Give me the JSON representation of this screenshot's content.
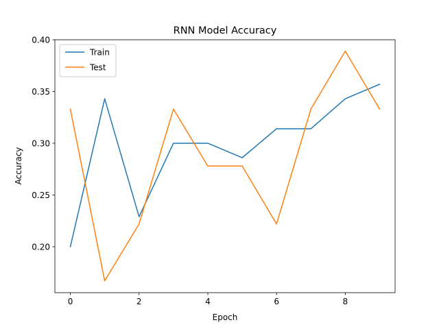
{
  "chart_data": {
    "type": "line",
    "title": "RNN Model Accuracy",
    "xlabel": "Epoch",
    "ylabel": "Accuracy",
    "x": [
      0,
      1,
      2,
      3,
      4,
      5,
      6,
      7,
      8,
      9
    ],
    "xlim": [
      -0.45,
      9.45
    ],
    "ylim": [
      0.1556,
      0.4
    ],
    "xticks": [
      0,
      2,
      4,
      6,
      8
    ],
    "yticks": [
      0.2,
      0.25,
      0.3,
      0.35,
      0.4
    ],
    "xtick_labels": [
      "0",
      "2",
      "4",
      "6",
      "8"
    ],
    "ytick_labels": [
      "0.20",
      "0.25",
      "0.30",
      "0.35",
      "0.40"
    ],
    "grid": false,
    "legend_position": "top-left",
    "series": [
      {
        "name": "Train",
        "color": "#1f77b4",
        "values": [
          0.2,
          0.343,
          0.229,
          0.3,
          0.3,
          0.286,
          0.314,
          0.314,
          0.343,
          0.357
        ]
      },
      {
        "name": "Test",
        "color": "#ff7f0e",
        "values": [
          0.333,
          0.167,
          0.222,
          0.333,
          0.278,
          0.278,
          0.222,
          0.333,
          0.389,
          0.333
        ]
      }
    ]
  }
}
